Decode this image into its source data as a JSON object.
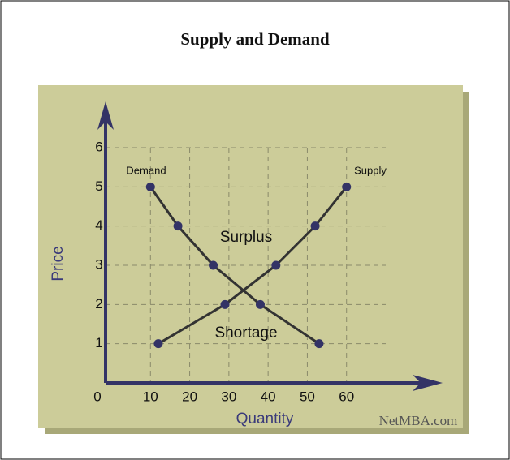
{
  "chart_data": {
    "type": "line",
    "title": "Supply and Demand",
    "xlabel": "Quantity",
    "ylabel": "Price",
    "series": [
      {
        "name": "Demand",
        "color": "#333366",
        "x": [
          10,
          17,
          26,
          38,
          53
        ],
        "values": [
          5,
          4,
          3,
          2,
          1
        ]
      },
      {
        "name": "Supply",
        "color": "#333366",
        "x": [
          12,
          29,
          42,
          52,
          60
        ],
        "values": [
          1,
          2,
          3,
          4,
          5
        ]
      }
    ],
    "annotations": [
      "Surplus",
      "Shortage"
    ],
    "source": "NetMBA.com",
    "xlim": [
      0,
      70
    ],
    "xticks": [
      0,
      10,
      20,
      30,
      40,
      50,
      60
    ],
    "ylim": [
      0,
      6
    ],
    "yticks": [
      1,
      2,
      3,
      4,
      5,
      6
    ],
    "grid": true
  }
}
